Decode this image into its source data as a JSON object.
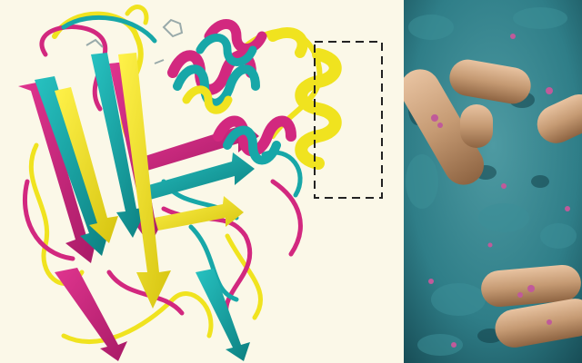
{
  "figure": {
    "left_panel": {
      "subject": "protein-ribbon-structure-overlay",
      "background_color": "#fbf8e8",
      "ribbon_colors": {
        "magenta": "#d2287f",
        "cyan": "#17a7a8",
        "yellow": "#f0e31f",
        "highlight_box_stroke": "#222222"
      }
    },
    "right_panel": {
      "subject": "electron-micrograph-rod-bacteria",
      "colors": {
        "surface_teal": "#2f7e88",
        "bacteria_tan": "#c59a73",
        "pink_spots": "#c05a9a"
      }
    }
  }
}
